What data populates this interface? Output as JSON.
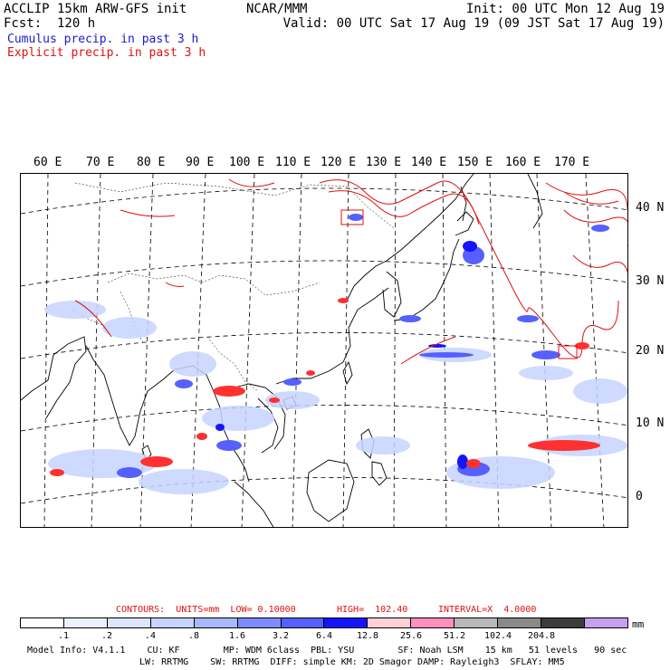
{
  "header": {
    "title_line1": "ACCLIP 15km ARW-GFS init",
    "fcst": "Fcst:  120 h",
    "center": "NCAR/MMM",
    "init": "Init: 00 UTC Mon 12 Aug 19",
    "valid": "Valid: 00 UTC Sat 17 Aug 19 (09 JST Sat 17 Aug 19)",
    "legend_cumulus": "Cumulus precip. in past 3 h",
    "legend_explicit": "Explicit precip. in past 3 h"
  },
  "map": {
    "longitude_labels": [
      "60 E",
      "70 E",
      "80 E",
      "90 E",
      "100 E",
      "110 E",
      "120 E",
      "130 E",
      "140 E",
      "150 E",
      "160 E",
      "170 E"
    ],
    "latitude_labels": [
      "40 N",
      "30 N",
      "20 N",
      "10 N",
      "0"
    ]
  },
  "contours": {
    "label": "CONTOURS:  UNITS=mm  LOW= 0.10000",
    "high": "HIGH=  102.40",
    "interval": "INTERVAL=X  4.0000"
  },
  "colorbar": {
    "colors": [
      "#ffffff",
      "#eef2ff",
      "#dde6ff",
      "#c6d4ff",
      "#a8b8ff",
      "#7e8cff",
      "#5560ff",
      "#1414ff",
      "#ffd0d4",
      "#ff90bc",
      "#b8b8b8",
      "#8a8a8a",
      "#3c3c3c",
      "#c8a0f0"
    ],
    "labels": [
      ".1",
      ".2",
      ".4",
      ".8",
      "1.6",
      "3.2",
      "6.4",
      "12.8",
      "25.6",
      "51.2",
      "102.4",
      "204.8"
    ],
    "unit": "mm"
  },
  "model_info": {
    "line1": "Model Info: V4.1.1    CU: KF        MP: WDM 6class  PBL: YSU        SF: Noah LSM    15 km   51 levels   90 sec",
    "line2": "LW: RRTMG    SW: RRTMG  DIFF: simple KM: 2D Smagor DAMP: Rayleigh3  SFLAY: MM5"
  }
}
